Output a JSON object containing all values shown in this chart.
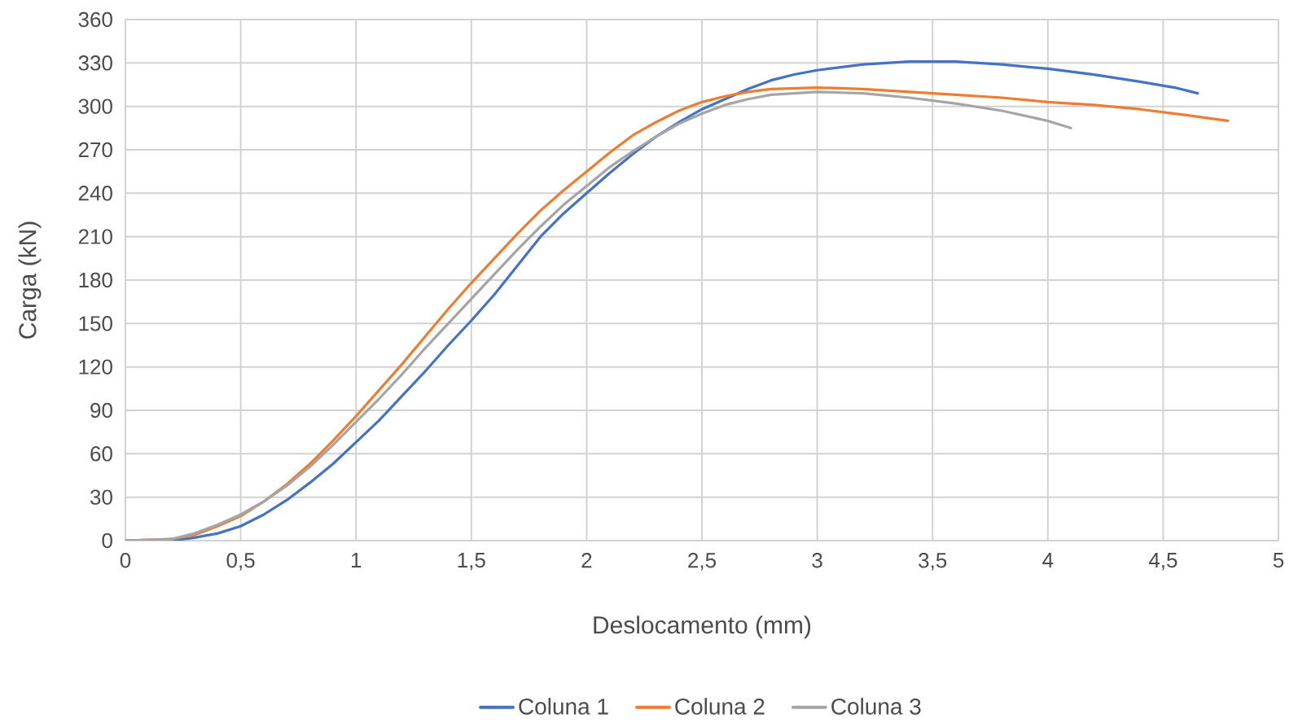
{
  "chart_data": {
    "type": "line",
    "xlabel": "Deslocamento (mm)",
    "ylabel": "Carga (kN)",
    "xlim": [
      0,
      5
    ],
    "ylim": [
      0,
      360
    ],
    "xticks": [
      0,
      {
        "value": 0.5,
        "label": "0,5"
      },
      1,
      {
        "value": 1.5,
        "label": "1,5"
      },
      2,
      {
        "value": 2.5,
        "label": "2,5"
      },
      3,
      {
        "value": 3.5,
        "label": "3,5"
      },
      4,
      {
        "value": 4.5,
        "label": "4,5"
      },
      5
    ],
    "yticks": [
      0,
      30,
      60,
      90,
      120,
      150,
      180,
      210,
      240,
      270,
      300,
      330,
      360
    ],
    "grid": true,
    "legend": "bottom",
    "marker": "none",
    "line_style": "solid",
    "x": [
      0,
      0.2,
      0.3,
      0.4,
      0.5,
      0.6,
      0.7,
      0.8,
      0.9,
      1.0,
      1.1,
      1.2,
      1.3,
      1.4,
      1.5,
      1.6,
      1.7,
      1.8,
      1.9,
      2.0,
      2.1,
      2.2,
      2.3,
      2.4,
      2.5,
      2.6,
      2.7,
      2.8,
      2.9,
      3.0,
      3.2,
      3.4,
      3.6,
      3.8,
      4.0,
      4.2,
      4.4,
      4.55,
      4.65
    ],
    "series": [
      {
        "name": "Coluna 1",
        "color": "#4472c4",
        "values": [
          0,
          0,
          2,
          5,
          10,
          18,
          28,
          40,
          53,
          68,
          83,
          100,
          117,
          135,
          152,
          170,
          190,
          210,
          226,
          240,
          254,
          267,
          279,
          289,
          298,
          305,
          312,
          318,
          322,
          325,
          329,
          331,
          331,
          329,
          326,
          322,
          317,
          313,
          309
        ]
      },
      {
        "name": "Coluna 2",
        "color": "#ed7d31",
        "x": [
          0,
          0.2,
          0.3,
          0.4,
          0.5,
          0.6,
          0.7,
          0.8,
          0.9,
          1.0,
          1.1,
          1.2,
          1.3,
          1.4,
          1.5,
          1.6,
          1.7,
          1.8,
          1.9,
          2.0,
          2.1,
          2.2,
          2.3,
          2.4,
          2.5,
          2.6,
          2.7,
          2.8,
          3.0,
          3.2,
          3.4,
          3.6,
          3.8,
          4.0,
          4.2,
          4.4,
          4.6,
          4.78
        ],
        "values": [
          0,
          1,
          4,
          10,
          17,
          27,
          39,
          53,
          69,
          86,
          104,
          122,
          141,
          160,
          178,
          195,
          212,
          228,
          242,
          255,
          268,
          280,
          289,
          297,
          303,
          307,
          310,
          312,
          313,
          312,
          310,
          308,
          306,
          303,
          301,
          298,
          294,
          290
        ]
      },
      {
        "name": "Coluna 3",
        "color": "#a5a5a5",
        "x": [
          0,
          0.2,
          0.3,
          0.4,
          0.5,
          0.6,
          0.7,
          0.8,
          0.9,
          1.0,
          1.1,
          1.2,
          1.3,
          1.4,
          1.5,
          1.6,
          1.7,
          1.8,
          1.9,
          2.0,
          2.1,
          2.2,
          2.3,
          2.4,
          2.5,
          2.6,
          2.7,
          2.8,
          3.0,
          3.2,
          3.4,
          3.6,
          3.8,
          4.0,
          4.1
        ],
        "values": [
          0,
          1,
          5,
          11,
          18,
          27,
          38,
          51,
          66,
          82,
          98,
          115,
          133,
          150,
          167,
          184,
          201,
          217,
          232,
          245,
          258,
          269,
          279,
          288,
          295,
          301,
          305,
          308,
          310,
          309,
          306,
          302,
          297,
          290,
          285
        ]
      }
    ]
  }
}
